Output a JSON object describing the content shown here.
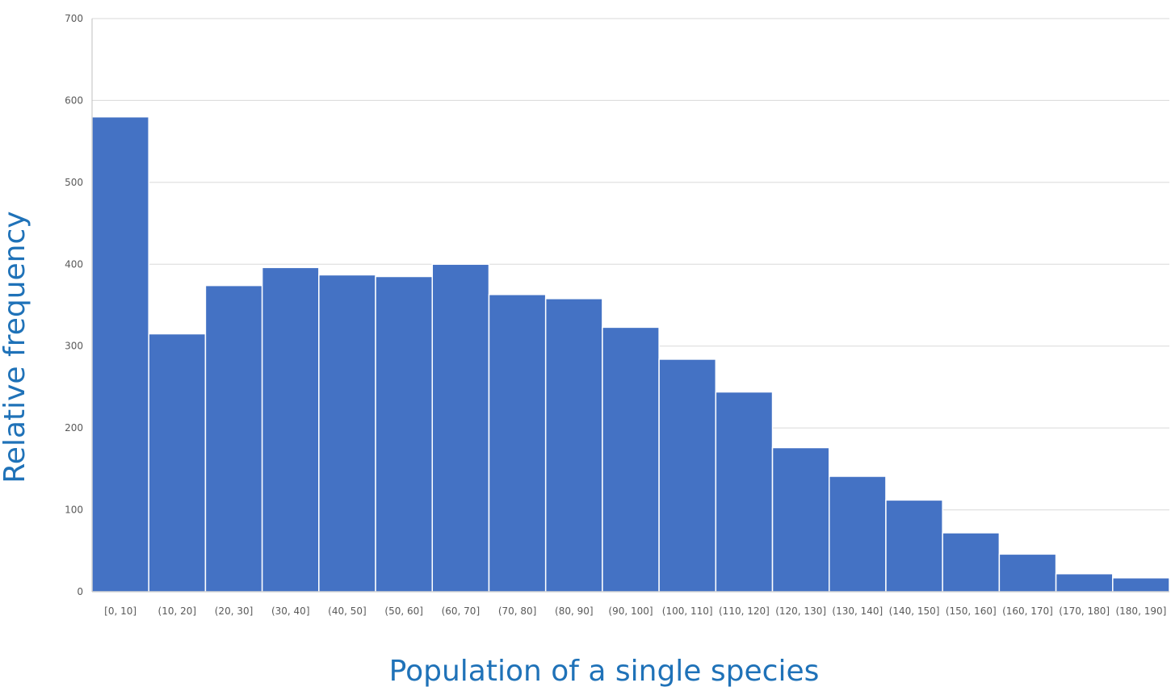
{
  "chart_data": {
    "type": "bar",
    "title": "",
    "xlabel": "Population of a single species",
    "ylabel": "Relative frequency",
    "ylim": [
      0,
      700
    ],
    "yticks": [
      0,
      100,
      200,
      300,
      400,
      500,
      600,
      700
    ],
    "grid": true,
    "legend": "none",
    "categories": [
      "[0, 10]",
      "(10, 20]",
      "(20, 30]",
      "(30, 40]",
      "(40, 50]",
      "(50, 60]",
      "(60, 70]",
      "(70, 80]",
      "(80, 90]",
      "(90, 100]",
      "(100, 110]",
      "(110, 120]",
      "(120, 130]",
      "(130, 140]",
      "(140, 150]",
      "(150, 160]",
      "(160, 170]",
      "(170, 180]",
      "(180, 190]"
    ],
    "values": [
      580,
      315,
      374,
      396,
      387,
      385,
      400,
      363,
      358,
      323,
      284,
      244,
      176,
      141,
      112,
      72,
      46,
      22,
      17
    ],
    "colors": {
      "bar": "#4472c4",
      "bar_edge": "#ffffff",
      "grid": "#d9d9d9",
      "axis": "#bfbfbf",
      "axis_title": "#1f72b8",
      "tick_text": "#595959"
    }
  }
}
